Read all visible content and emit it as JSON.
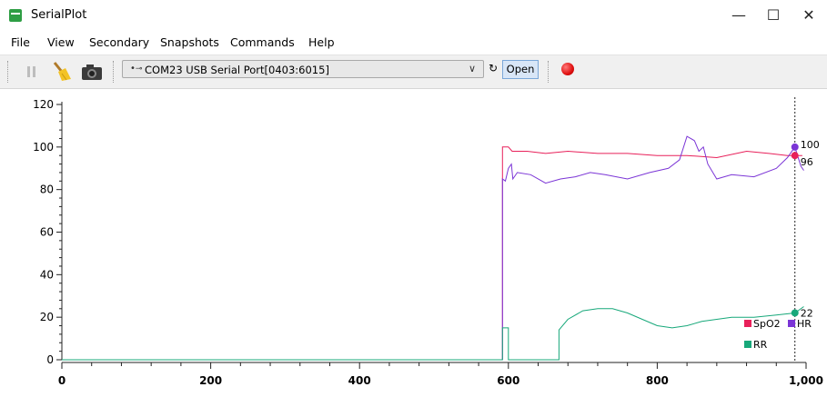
{
  "window": {
    "title": "SerialPlot",
    "minimize_glyph": "—",
    "maximize_glyph": "☐",
    "close_glyph": "✕"
  },
  "menu": [
    "File",
    "View",
    "Secondary",
    "Snapshots",
    "Commands",
    "Help"
  ],
  "toolbar": {
    "pause_icon": "pause-icon",
    "clear_icon": "broom-icon",
    "snapshot_icon": "camera-icon",
    "port_value": "COM23 USB Serial Port[0403:6015]",
    "refresh_glyph": "↻",
    "open_label": "Open",
    "record_icon": "record-icon"
  },
  "chart_data": {
    "type": "line",
    "xlim": [
      0,
      1000
    ],
    "ylim": [
      0,
      120
    ],
    "x_ticks": [
      0,
      200,
      400,
      600,
      800,
      1000
    ],
    "x_tick_labels": [
      "0",
      "200",
      "400",
      "600",
      "800",
      "1,000"
    ],
    "y_ticks": [
      0,
      20,
      40,
      60,
      80,
      100,
      120
    ],
    "y_tick_labels": [
      "0",
      "20",
      "40",
      "60",
      "80",
      "100",
      "120"
    ],
    "grid": false,
    "cursor_x": 985,
    "series": [
      {
        "name": "SpO2",
        "color": "#e8205a",
        "cursor_value": 96,
        "cursor_label": "96",
        "points": [
          [
            592,
            0
          ],
          [
            592,
            100
          ],
          [
            600,
            100
          ],
          [
            605,
            98
          ],
          [
            625,
            98
          ],
          [
            650,
            97
          ],
          [
            680,
            98
          ],
          [
            720,
            97
          ],
          [
            760,
            97
          ],
          [
            800,
            96
          ],
          [
            840,
            96
          ],
          [
            880,
            95
          ],
          [
            920,
            98
          ],
          [
            950,
            97
          ],
          [
            975,
            96
          ],
          [
            995,
            96
          ]
        ]
      },
      {
        "name": "HR",
        "color": "#7b35d6",
        "cursor_value": 100,
        "cursor_label": "100",
        "points": [
          [
            592,
            0
          ],
          [
            592,
            85
          ],
          [
            596,
            84
          ],
          [
            600,
            90
          ],
          [
            604,
            92
          ],
          [
            606,
            85
          ],
          [
            612,
            88
          ],
          [
            630,
            87
          ],
          [
            650,
            83
          ],
          [
            670,
            85
          ],
          [
            690,
            86
          ],
          [
            710,
            88
          ],
          [
            730,
            87
          ],
          [
            760,
            85
          ],
          [
            790,
            88
          ],
          [
            815,
            90
          ],
          [
            830,
            94
          ],
          [
            840,
            105
          ],
          [
            850,
            103
          ],
          [
            856,
            98
          ],
          [
            862,
            100
          ],
          [
            868,
            92
          ],
          [
            880,
            85
          ],
          [
            900,
            87
          ],
          [
            930,
            86
          ],
          [
            960,
            90
          ],
          [
            975,
            95
          ],
          [
            985,
            100
          ],
          [
            993,
            91
          ],
          [
            997,
            89
          ]
        ]
      },
      {
        "name": "RR",
        "color": "#17a87a",
        "cursor_value": 22,
        "cursor_label": "22",
        "points": [
          [
            0,
            0
          ],
          [
            592,
            0
          ],
          [
            592,
            15
          ],
          [
            600,
            15
          ],
          [
            600,
            0
          ],
          [
            668,
            0
          ],
          [
            668,
            14
          ],
          [
            680,
            19
          ],
          [
            700,
            23
          ],
          [
            720,
            24
          ],
          [
            740,
            24
          ],
          [
            760,
            22
          ],
          [
            780,
            19
          ],
          [
            800,
            16
          ],
          [
            820,
            15
          ],
          [
            840,
            16
          ],
          [
            860,
            18
          ],
          [
            880,
            19
          ],
          [
            900,
            20
          ],
          [
            930,
            20
          ],
          [
            960,
            21
          ],
          [
            985,
            22
          ],
          [
            997,
            25
          ]
        ]
      }
    ]
  }
}
